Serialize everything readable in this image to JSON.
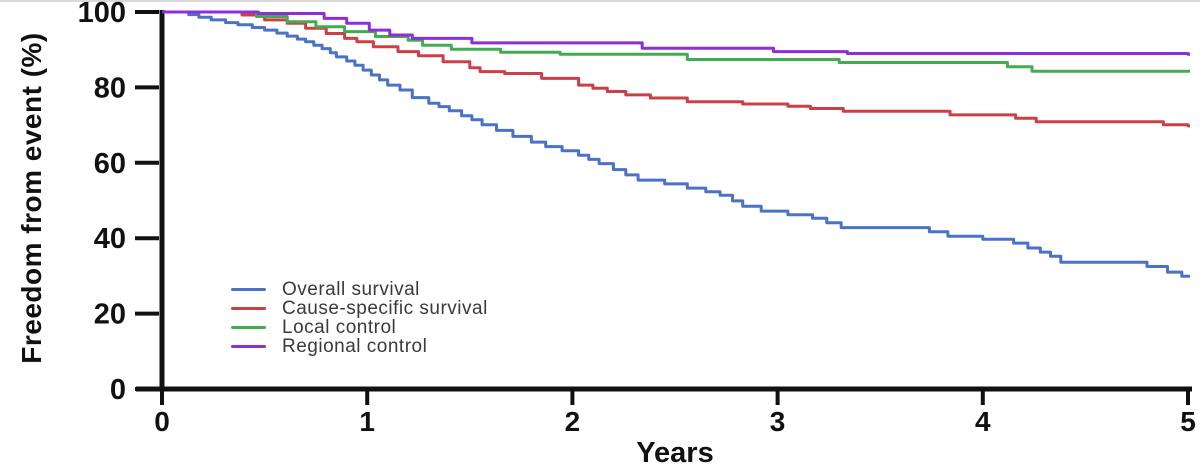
{
  "chart_data": {
    "type": "line",
    "style": "kaplan-meier-step",
    "title": "",
    "xlabel": "Years",
    "ylabel": "Freedom from event (%)",
    "xlim": [
      0,
      5
    ],
    "ylim": [
      0,
      100
    ],
    "xticks": [
      0,
      1,
      2,
      3,
      4,
      5
    ],
    "yticks": [
      0,
      20,
      40,
      60,
      80,
      100
    ],
    "grid": false,
    "legend_position": "inside-lower-left",
    "axis_color": "#111111",
    "series": [
      {
        "name": "Overall survival",
        "color": "#4a72c6",
        "points": [
          [
            0,
            100
          ],
          [
            0.13,
            99.3
          ],
          [
            0.18,
            98.6
          ],
          [
            0.24,
            97.9
          ],
          [
            0.31,
            97.2
          ],
          [
            0.37,
            96.6
          ],
          [
            0.44,
            95.9
          ],
          [
            0.5,
            95.2
          ],
          [
            0.56,
            94.4
          ],
          [
            0.61,
            93.6
          ],
          [
            0.66,
            92.8
          ],
          [
            0.7,
            92.1
          ],
          [
            0.74,
            91.2
          ],
          [
            0.78,
            90.3
          ],
          [
            0.82,
            89.2
          ],
          [
            0.85,
            88.1
          ],
          [
            0.9,
            87
          ],
          [
            0.94,
            85.9
          ],
          [
            0.98,
            84.6
          ],
          [
            1.02,
            83.3
          ],
          [
            1.06,
            82
          ],
          [
            1.1,
            80.6
          ],
          [
            1.16,
            79.3
          ],
          [
            1.22,
            77.3
          ],
          [
            1.3,
            75.8
          ],
          [
            1.35,
            74.9
          ],
          [
            1.4,
            73.8
          ],
          [
            1.46,
            72.5
          ],
          [
            1.51,
            71.4
          ],
          [
            1.56,
            70.1
          ],
          [
            1.63,
            68.6
          ],
          [
            1.71,
            67
          ],
          [
            1.8,
            65.5
          ],
          [
            1.87,
            64.3
          ],
          [
            1.95,
            63.2
          ],
          [
            2.03,
            62
          ],
          [
            2.08,
            60.9
          ],
          [
            2.13,
            59.8
          ],
          [
            2.2,
            58.2
          ],
          [
            2.26,
            56.8
          ],
          [
            2.32,
            55.4
          ],
          [
            2.45,
            54.4
          ],
          [
            2.56,
            53.3
          ],
          [
            2.65,
            52.3
          ],
          [
            2.72,
            51.4
          ],
          [
            2.78,
            49.9
          ],
          [
            2.83,
            48.5
          ],
          [
            2.92,
            47.2
          ],
          [
            3.05,
            46.2
          ],
          [
            3.17,
            45.3
          ],
          [
            3.24,
            44.1
          ],
          [
            3.31,
            42.8
          ],
          [
            3.74,
            41.7
          ],
          [
            3.83,
            40.5
          ],
          [
            4,
            39.7
          ],
          [
            4.15,
            38.7
          ],
          [
            4.22,
            37.4
          ],
          [
            4.28,
            36.3
          ],
          [
            4.33,
            35.2
          ],
          [
            4.38,
            33.6
          ],
          [
            4.8,
            32.5
          ],
          [
            4.9,
            31
          ],
          [
            4.97,
            29.9
          ],
          [
            5,
            29.9
          ]
        ]
      },
      {
        "name": "Cause-specific survival",
        "color": "#cb4046",
        "points": [
          [
            0,
            100
          ],
          [
            0.39,
            99.2
          ],
          [
            0.5,
            97.9
          ],
          [
            0.61,
            97
          ],
          [
            0.7,
            95.7
          ],
          [
            0.8,
            94.3
          ],
          [
            0.89,
            93
          ],
          [
            0.95,
            92.1
          ],
          [
            1.03,
            90.8
          ],
          [
            1.15,
            89.5
          ],
          [
            1.25,
            88.4
          ],
          [
            1.37,
            86.8
          ],
          [
            1.5,
            85.2
          ],
          [
            1.55,
            84.2
          ],
          [
            1.67,
            83.7
          ],
          [
            1.85,
            82.4
          ],
          [
            2.03,
            80.6
          ],
          [
            2.1,
            79.8
          ],
          [
            2.17,
            78.9
          ],
          [
            2.26,
            78
          ],
          [
            2.38,
            77.2
          ],
          [
            2.56,
            76.2
          ],
          [
            2.83,
            75.6
          ],
          [
            3.05,
            75
          ],
          [
            3.16,
            74.4
          ],
          [
            3.32,
            73.7
          ],
          [
            3.84,
            72.7
          ],
          [
            4.16,
            71.8
          ],
          [
            4.26,
            70.9
          ],
          [
            4.88,
            70.1
          ],
          [
            5,
            69.8
          ]
        ]
      },
      {
        "name": "Local control",
        "color": "#44ab51",
        "points": [
          [
            0,
            100
          ],
          [
            0.46,
            98.8
          ],
          [
            0.61,
            97.4
          ],
          [
            0.75,
            96.1
          ],
          [
            0.89,
            94.8
          ],
          [
            1.04,
            93.5
          ],
          [
            1.2,
            92.5
          ],
          [
            1.27,
            91.2
          ],
          [
            1.41,
            90.1
          ],
          [
            1.65,
            89.3
          ],
          [
            1.94,
            88.8
          ],
          [
            2.56,
            87.4
          ],
          [
            3.3,
            86.6
          ],
          [
            4.12,
            85.5
          ],
          [
            4.24,
            84.3
          ],
          [
            5,
            84.3
          ]
        ]
      },
      {
        "name": "Regional control",
        "color": "#8d2ed8",
        "points": [
          [
            0,
            100
          ],
          [
            0.47,
            99.6
          ],
          [
            0.79,
            98.3
          ],
          [
            0.9,
            97
          ],
          [
            1.01,
            95.2
          ],
          [
            1.11,
            93.9
          ],
          [
            1.22,
            93
          ],
          [
            1.51,
            91.8
          ],
          [
            2.34,
            90.4
          ],
          [
            2.98,
            89.5
          ],
          [
            3.34,
            89
          ],
          [
            5,
            88.8
          ]
        ]
      }
    ]
  }
}
